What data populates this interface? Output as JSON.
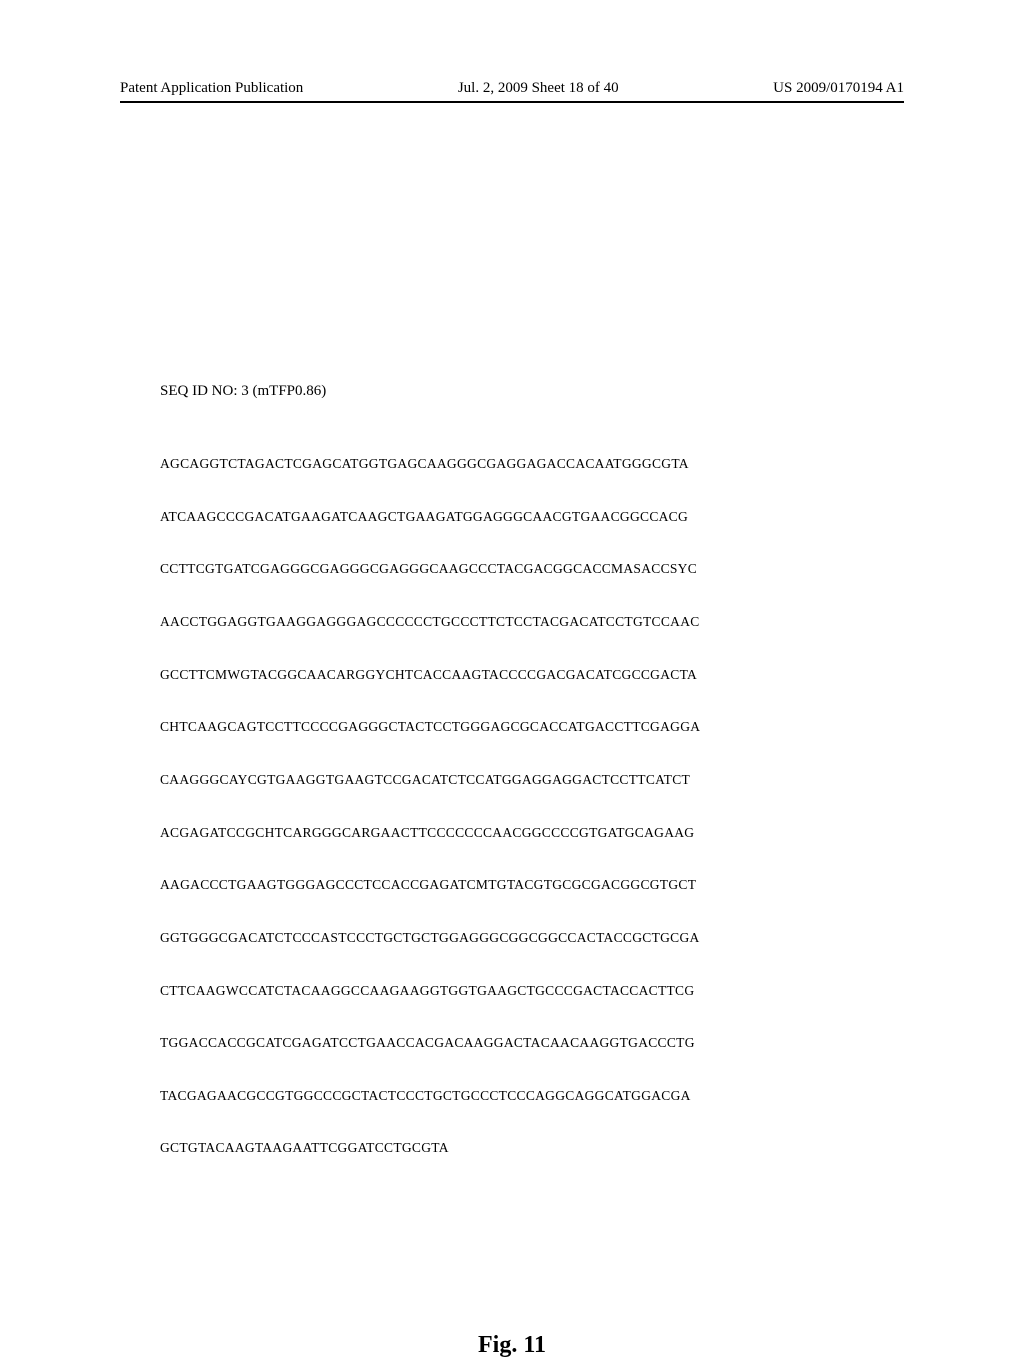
{
  "header": {
    "left": "Patent Application Publication",
    "center": "Jul. 2, 2009  Sheet 18 of 40",
    "right": "US 2009/0170194 A1"
  },
  "sequence": {
    "label": "SEQ ID NO: 3 (mTFP0.86)",
    "lines": [
      "AGCAGGTCTAGACTCGAGCATGGTGAGCAAGGGCGAGGAGACCACAATGGGCGTA",
      "ATCAAGCCCGACATGAAGATCAAGCTGAAGATGGAGGGCAACGTGAACGGCCACG",
      "CCTTCGTGATCGAGGGCGAGGGCGAGGGCAAGCCCTACGACGGCACCMASACCSYC",
      "AACCTGGAGGTGAAGGAGGGAGCCCCCCTGCCCTTCTCCTACGACATCCTGTCCAAC",
      "GCCTTCMWGTACGGCAACARGGYCHTCACCAAGTACCCCGACGACATCGCCGACTA",
      "CHTCAAGCAGTCCTTCCCCGAGGGCTACTCCTGGGAGCGCACCATGACCTTCGAGGA",
      "CAAGGGCAYCGTGAAGGTGAAGTCCGACATCTCCATGGAGGAGGACTCCTTCATCT",
      "ACGAGATCCGCHTCARGGGCARGAACTTCCCCCCCAACGGCCCCGTGATGCAGAAG",
      "AAGACCCTGAAGTGGGAGCCCTCCACCGAGATCMTGTACGTGCGCGACGGCGTGCT",
      "GGTGGGCGACATCTCCCASTCCCTGCTGCTGGAGGGCGGCGGCCACTACCGCTGCGA",
      "CTTCAAGWCCATCTACAAGGCCAAGAAGGTGGTGAAGCTGCCCGACTACCACTTCG",
      "TGGACCACCGCATCGAGATCCTGAACCACGACAAGGACTACAACAAGGTGACCCTG",
      "TACGAGAACGCCGTGGCCCGCTACTCCCTGCTGCCCTCCCAGGCAGGCATGGACGA",
      "GCTGTACAAGTAAGAATTCGGATCCTGCGTA"
    ]
  },
  "figure": {
    "label": "Fig. 11"
  }
}
